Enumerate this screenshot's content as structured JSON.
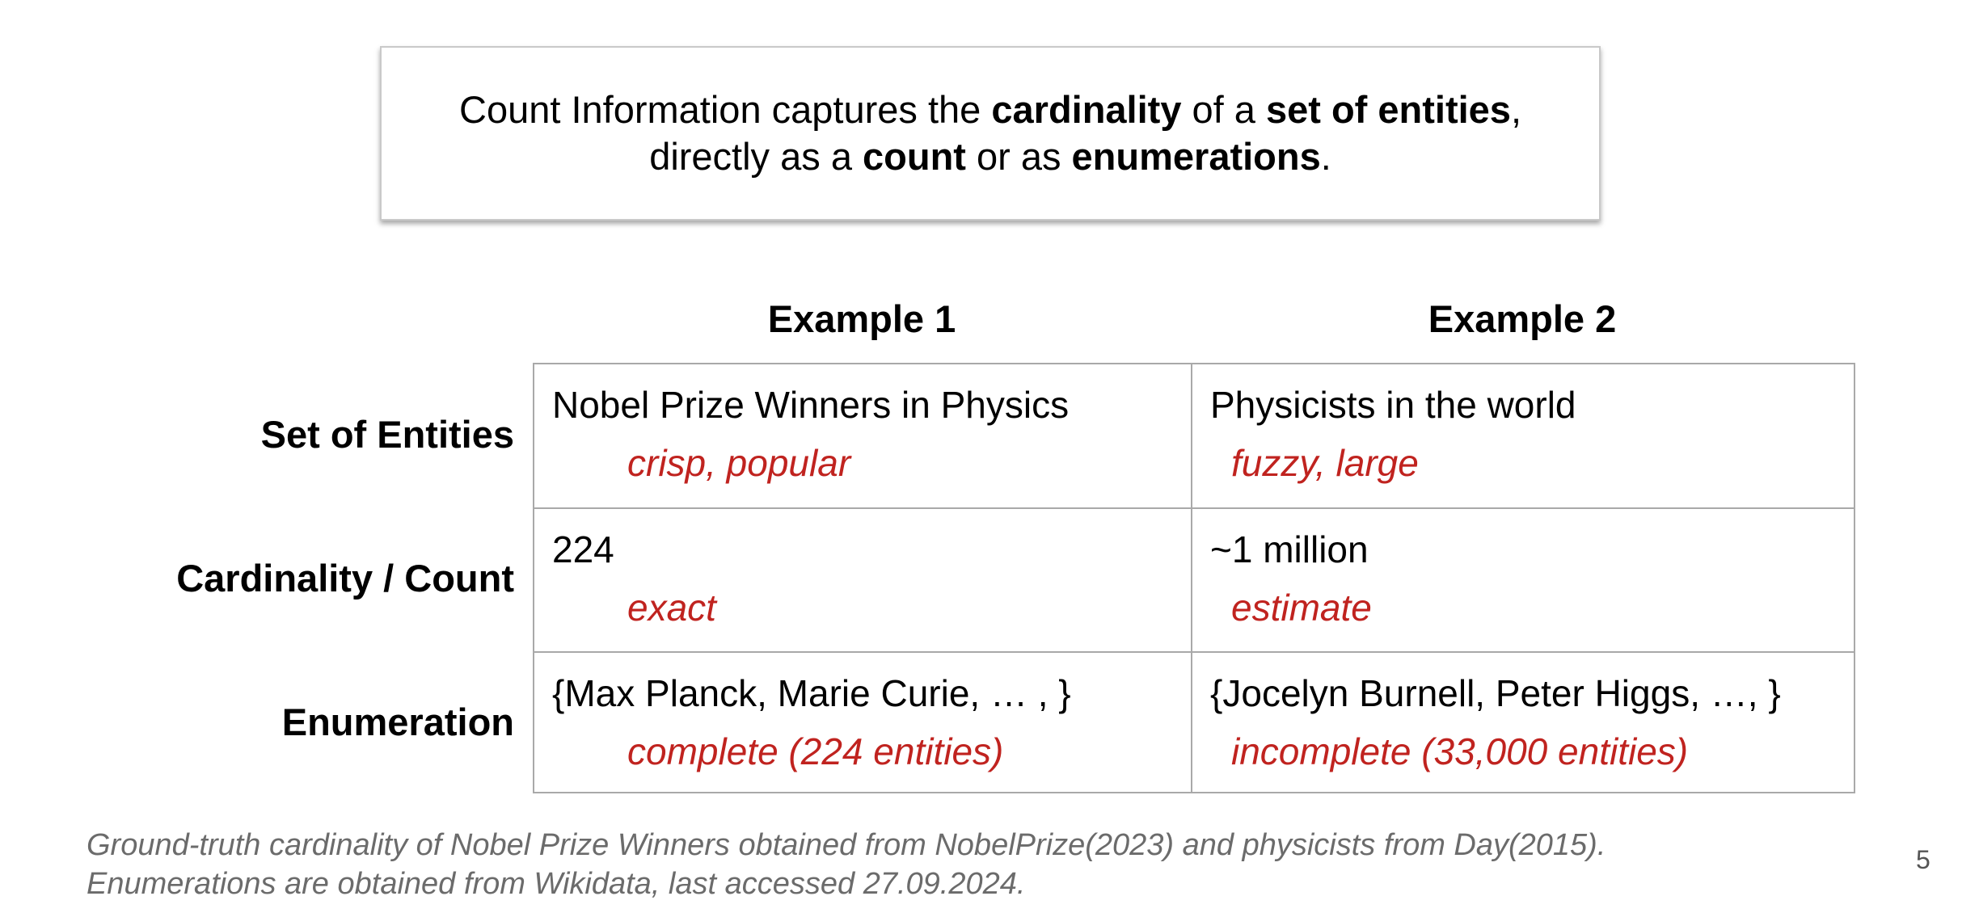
{
  "definition": {
    "line1": {
      "t1": "Count Information captures the ",
      "b1": "cardinality",
      "t2": " of a ",
      "b2": "set of entities",
      "t3": ","
    },
    "line2": {
      "t1": "directly as a ",
      "b1": "count",
      "t2": " or as ",
      "b2": "enumerations",
      "t3": "."
    }
  },
  "table": {
    "columns": [
      "Example 1",
      "Example 2"
    ],
    "rows": [
      {
        "label": "Set of Entities",
        "cells": [
          {
            "main": "Nobel Prize Winners in Physics",
            "note": "crisp, popular"
          },
          {
            "main": "Physicists in the world",
            "note": "fuzzy, large"
          }
        ]
      },
      {
        "label": "Cardinality / Count",
        "cells": [
          {
            "main": "224",
            "note": "exact"
          },
          {
            "main": "~1 million",
            "note": "estimate"
          }
        ]
      },
      {
        "label": "Enumeration",
        "cells": [
          {
            "main": "{Max Planck, Marie Curie, … , }",
            "note": "complete (224 entities)"
          },
          {
            "main": "{Jocelyn Burnell, Peter Higgs, …, }",
            "note": "incomplete (33,000 entities)"
          }
        ]
      }
    ]
  },
  "footnote": {
    "line1": "Ground-truth cardinality of Nobel Prize Winners obtained from NobelPrize(2023) and physicists from Day(2015).",
    "line2": "Enumerations are obtained from Wikidata, last accessed 27.09.2024."
  },
  "page_number": "5",
  "colors": {
    "note_red": "#c0231f",
    "footnote_gray": "#6b6b6b",
    "grid_gray": "#a9a9a9"
  }
}
